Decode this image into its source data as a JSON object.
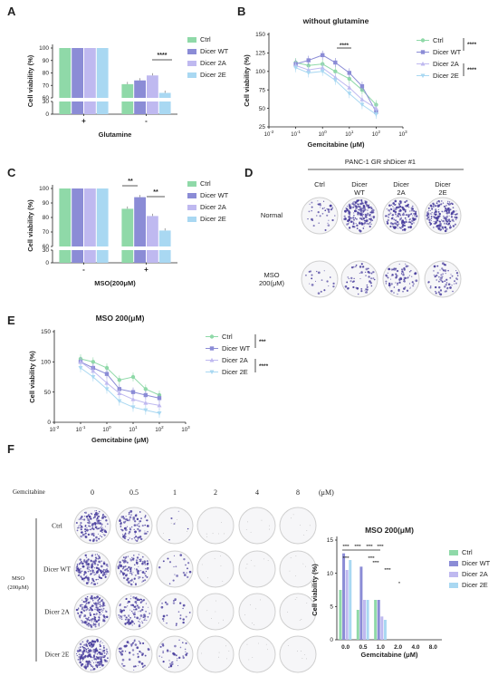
{
  "colors": {
    "ctrl": "#8fd9a8",
    "dicer_wt": "#8b8cd6",
    "dicer_2a": "#bfb9f0",
    "dicer_2e": "#a9d8f2",
    "colony": "#4a3f9e",
    "dish_rim": "#cfcfcf"
  },
  "panels": {
    "A": "A",
    "B": "B",
    "C": "C",
    "D": "D",
    "E": "E",
    "F": "F"
  },
  "legend": [
    "Ctrl",
    "Dicer WT",
    "Dicer 2A",
    "Dicer 2E"
  ],
  "chart_data": [
    {
      "panel": "A",
      "type": "bar",
      "title": "",
      "xlabel": "Glutamine",
      "ylabel": "Cell viability (%)",
      "categories": [
        "+",
        "-"
      ],
      "series": [
        {
          "name": "Ctrl",
          "values": [
            100,
            71
          ]
        },
        {
          "name": "Dicer WT",
          "values": [
            100,
            74
          ]
        },
        {
          "name": "Dicer 2A",
          "values": [
            100,
            78
          ]
        },
        {
          "name": "Dicer 2E",
          "values": [
            100,
            64
          ]
        }
      ],
      "yticks": [
        "0",
        "30",
        "60",
        "70",
        "80",
        "90",
        "100"
      ],
      "ylim": [
        0,
        100
      ],
      "y_break": [
        30,
        60
      ],
      "annotations": [
        "****"
      ]
    },
    {
      "panel": "B",
      "type": "line",
      "title": "without glutamine",
      "xlabel": "Gemcitabine (μM)",
      "ylabel": "Cell viability (%)",
      "x_scale": "log",
      "xticks": [
        "10-2",
        "10-1",
        "100",
        "101",
        "102",
        "103"
      ],
      "yticks": [
        "25",
        "50",
        "75",
        "100",
        "125",
        "150"
      ],
      "ylim": [
        25,
        150
      ],
      "x": [
        0.1,
        0.3,
        1,
        3,
        10,
        30,
        100
      ],
      "series": [
        {
          "name": "Ctrl",
          "values": [
            112,
            108,
            110,
            100,
            90,
            75,
            55
          ]
        },
        {
          "name": "Dicer WT",
          "values": [
            110,
            115,
            122,
            112,
            98,
            80,
            45
          ]
        },
        {
          "name": "Dicer 2A",
          "values": [
            108,
            102,
            105,
            92,
            78,
            62,
            50
          ]
        },
        {
          "name": "Dicer 2E",
          "values": [
            105,
            98,
            100,
            88,
            70,
            55,
            42
          ]
        }
      ],
      "annotations": [
        "****",
        "****",
        "****"
      ]
    },
    {
      "panel": "C",
      "type": "bar",
      "title": "",
      "xlabel": "MSO(200μM)",
      "ylabel": "Cell viability (%)",
      "categories": [
        "-",
        "+"
      ],
      "series": [
        {
          "name": "Ctrl",
          "values": [
            100,
            86
          ]
        },
        {
          "name": "Dicer WT",
          "values": [
            100,
            94
          ]
        },
        {
          "name": "Dicer 2A",
          "values": [
            100,
            81
          ]
        },
        {
          "name": "Dicer 2E",
          "values": [
            100,
            71
          ]
        }
      ],
      "yticks": [
        "0",
        "30",
        "60",
        "70",
        "80",
        "90",
        "100"
      ],
      "ylim": [
        0,
        100
      ],
      "y_break": [
        30,
        60
      ],
      "annotations": [
        "**",
        "**"
      ]
    },
    {
      "panel": "E",
      "type": "line",
      "title": "MSO 200(μM)",
      "xlabel": "Gemcitabine (μM)",
      "ylabel": "Cell viability (%)",
      "x_scale": "log",
      "xticks": [
        "10-2",
        "10-1",
        "100",
        "101",
        "102",
        "103"
      ],
      "yticks": [
        "0",
        "50",
        "100",
        "150"
      ],
      "ylim": [
        0,
        150
      ],
      "x": [
        0.1,
        0.3,
        1,
        3,
        10,
        30,
        100
      ],
      "series": [
        {
          "name": "Ctrl",
          "values": [
            105,
            100,
            90,
            70,
            75,
            55,
            45
          ]
        },
        {
          "name": "Dicer WT",
          "values": [
            100,
            90,
            80,
            55,
            50,
            45,
            40
          ]
        },
        {
          "name": "Dicer 2A",
          "values": [
            100,
            85,
            65,
            48,
            38,
            32,
            28
          ]
        },
        {
          "name": "Dicer 2E",
          "values": [
            90,
            75,
            55,
            35,
            25,
            20,
            15
          ]
        }
      ],
      "annotations": [
        "***",
        "****"
      ]
    },
    {
      "panel": "F",
      "type": "bar",
      "title": "MSO 200(μM)",
      "xlabel": "Gemcitabine (μM)",
      "ylabel": "Cell viability (%)",
      "categories": [
        "0.0",
        "0.5",
        "1.0",
        "2.0",
        "4.0",
        "8.0"
      ],
      "series": [
        {
          "name": "Ctrl",
          "values": [
            7.5,
            4.5,
            6.0,
            0,
            0,
            0
          ]
        },
        {
          "name": "Dicer WT",
          "values": [
            13.0,
            11.0,
            6.0,
            0,
            0,
            0
          ]
        },
        {
          "name": "Dicer 2A",
          "values": [
            10.5,
            6.0,
            3.5,
            0,
            0,
            0
          ]
        },
        {
          "name": "Dicer 2E",
          "values": [
            12.0,
            6.0,
            3.0,
            0,
            0,
            0
          ]
        }
      ],
      "yticks": [
        "0",
        "5",
        "10",
        "15"
      ],
      "ylim": [
        0,
        15
      ],
      "annotations": [
        "****",
        "****",
        "****",
        "****",
        "****",
        "****",
        "****",
        "****",
        "*"
      ]
    }
  ],
  "panel_D": {
    "header": "PANC-1 GR shDicer #1",
    "columns": [
      "Ctrl",
      "Dicer\nWT",
      "Dicer\n2A",
      "Dicer\n2E"
    ],
    "rows": [
      "Normal",
      "MSO\n200(μM)"
    ],
    "density": [
      [
        0.15,
        0.7,
        0.6,
        0.65
      ],
      [
        0.08,
        0.2,
        0.3,
        0.25
      ]
    ]
  },
  "panel_F_grid": {
    "header_label": "Gemcitabine",
    "doses": [
      "0",
      "0.5",
      "1",
      "2",
      "4",
      "8"
    ],
    "unit": "(μM)",
    "rows": [
      "Ctrl",
      "Dicer WT",
      "Dicer 2A",
      "Dicer 2E"
    ],
    "side_label": "MSO\n(200μM)",
    "density": [
      [
        0.55,
        0.35,
        0.02,
        0,
        0,
        0
      ],
      [
        0.6,
        0.45,
        0.08,
        0,
        0,
        0
      ],
      [
        0.65,
        0.45,
        0.1,
        0,
        0,
        0
      ],
      [
        0.85,
        0.2,
        0.15,
        0,
        0,
        0
      ]
    ]
  }
}
